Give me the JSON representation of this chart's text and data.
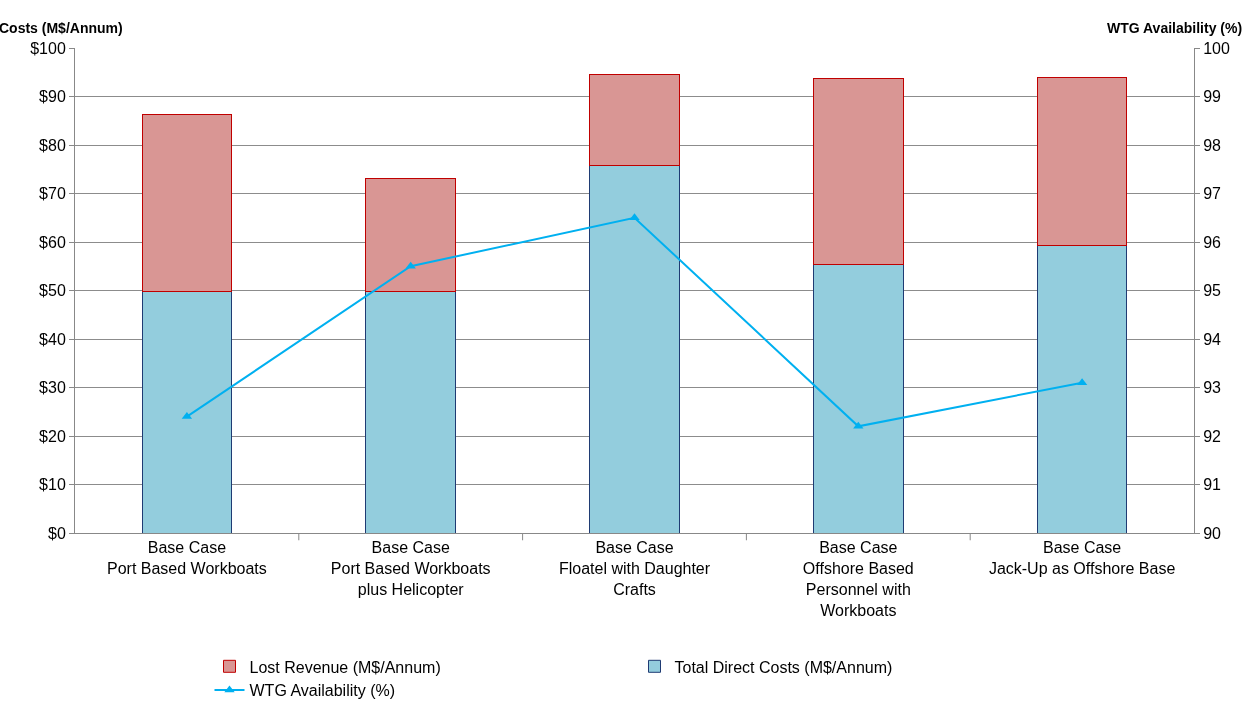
{
  "chart_data": {
    "type": "bar",
    "stacked": true,
    "ylabel": "Costs (M$/Annum)",
    "y2label": "WTG Availability (%)",
    "categories": [
      "Base Case\nPort Based Workboats",
      "Base Case\nPort Based Workboats\nplus Helicopter",
      "Base Case\nFloatel with Daughter\nCrafts",
      "Base Case\nOffshore Based\nPersonnel with\nWorkboats",
      "Base Case\nJack-Up as Offshore Base"
    ],
    "series": [
      {
        "name": "Total Direct Costs (M$/Annum)",
        "color": "#93cddd",
        "values": [
          49.7,
          49.8,
          75.8,
          55.4,
          59.3
        ]
      },
      {
        "name": "Lost Revenue (M$/Annum)",
        "color": "#d99694",
        "values": [
          36.6,
          23.2,
          18.8,
          38.3,
          34.7
        ]
      },
      {
        "name": "WTG Availability (%)",
        "type": "line",
        "axis": "y2",
        "color": "#00b0f0",
        "marker": "triangle",
        "values": [
          92.4,
          95.5,
          96.5,
          92.2,
          93.1
        ]
      }
    ],
    "ylim": [
      0,
      100
    ],
    "yticks": [
      {
        "value": 0,
        "label": "$0"
      },
      {
        "value": 10,
        "label": "$10"
      },
      {
        "value": 20,
        "label": "$20"
      },
      {
        "value": 30,
        "label": "$30"
      },
      {
        "value": 40,
        "label": "$40"
      },
      {
        "value": 50,
        "label": "$50"
      },
      {
        "value": 60,
        "label": "$60"
      },
      {
        "value": 70,
        "label": "$70"
      },
      {
        "value": 80,
        "label": "$80"
      },
      {
        "value": 90,
        "label": "$90"
      },
      {
        "value": 100,
        "label": "$100"
      }
    ],
    "y2lim": [
      90,
      100
    ],
    "y2ticks": [
      90,
      91,
      92,
      93,
      94,
      95,
      96,
      97,
      98,
      99,
      100
    ],
    "grid": "y",
    "legend": "bottom"
  }
}
